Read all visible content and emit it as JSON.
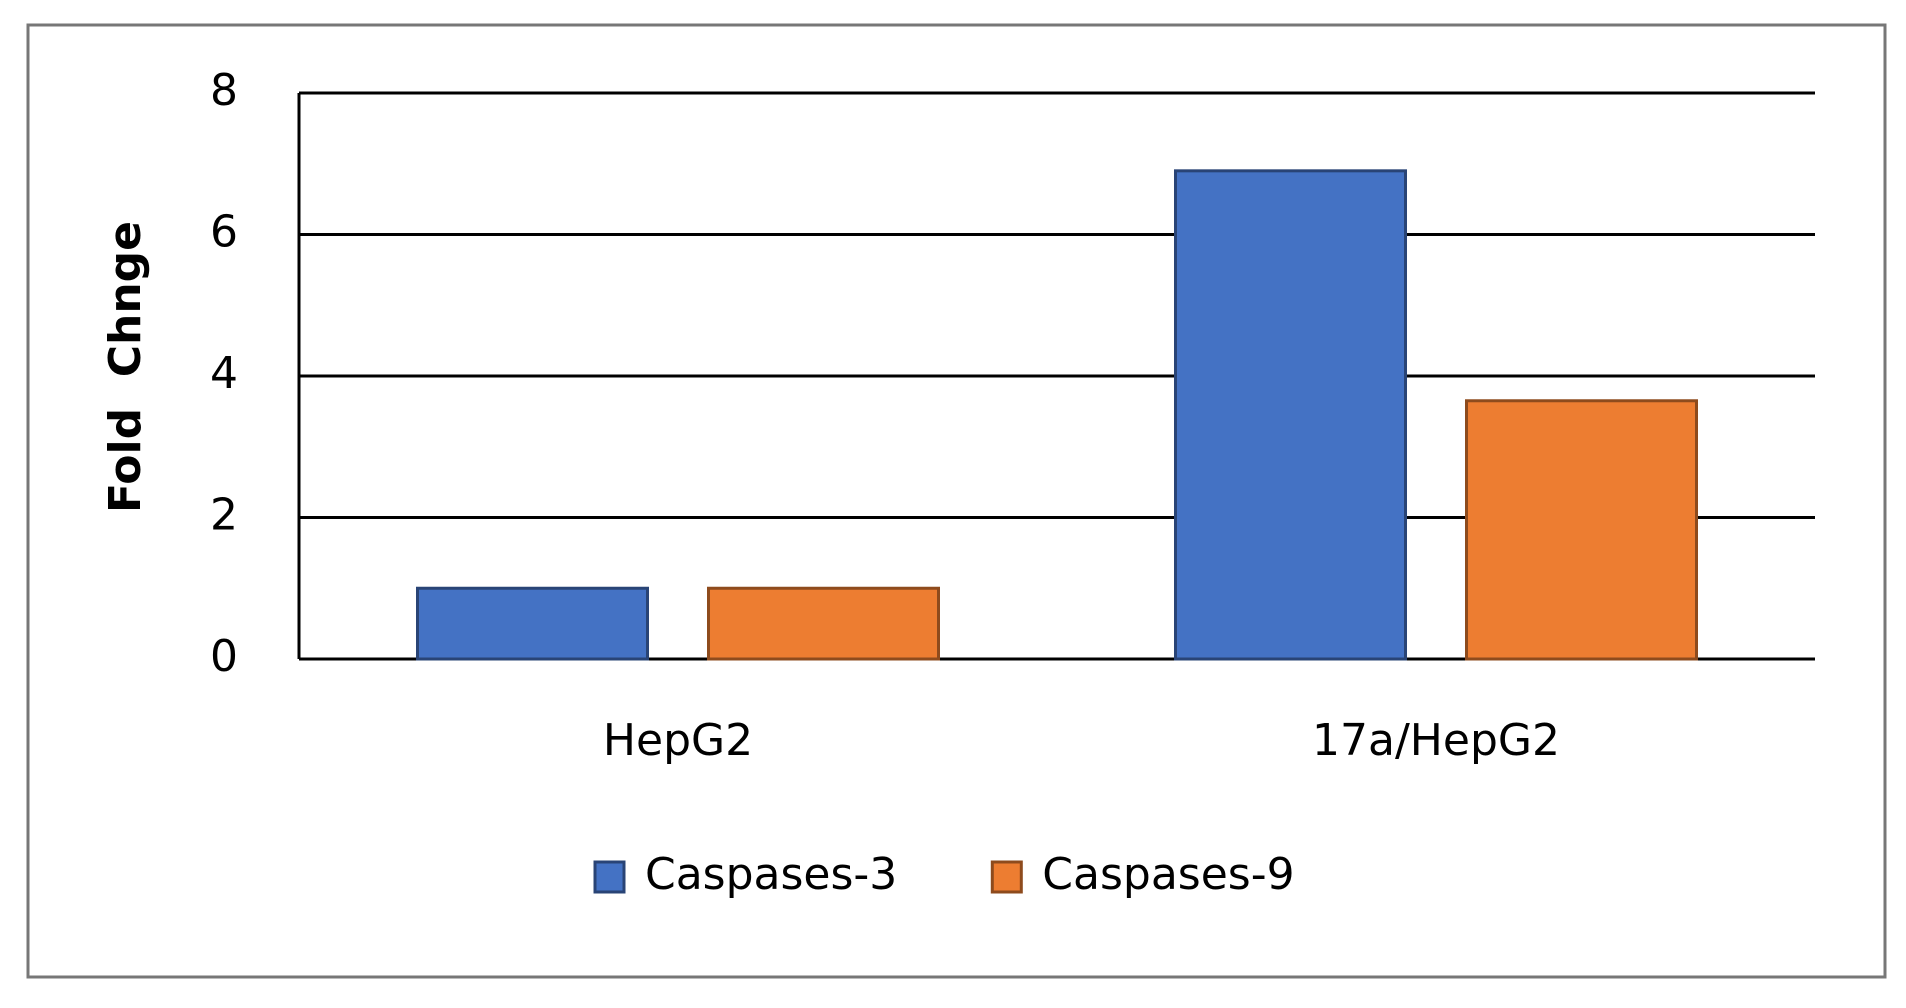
{
  "chart_data": {
    "type": "bar",
    "y_label": "Fold  Chnge",
    "categories": [
      "HepG2",
      "17a/HepG2"
    ],
    "series": [
      {
        "name": "Caspases-3",
        "color": "#4472c4",
        "values": [
          1,
          6.9
        ]
      },
      {
        "name": "Caspases-9",
        "color": "#ed7d31",
        "values": [
          1,
          3.65
        ]
      }
    ],
    "ylim": [
      0,
      8
    ],
    "yticks": [
      0,
      2,
      4,
      6,
      8
    ],
    "grid": true,
    "legend": "bottom"
  }
}
